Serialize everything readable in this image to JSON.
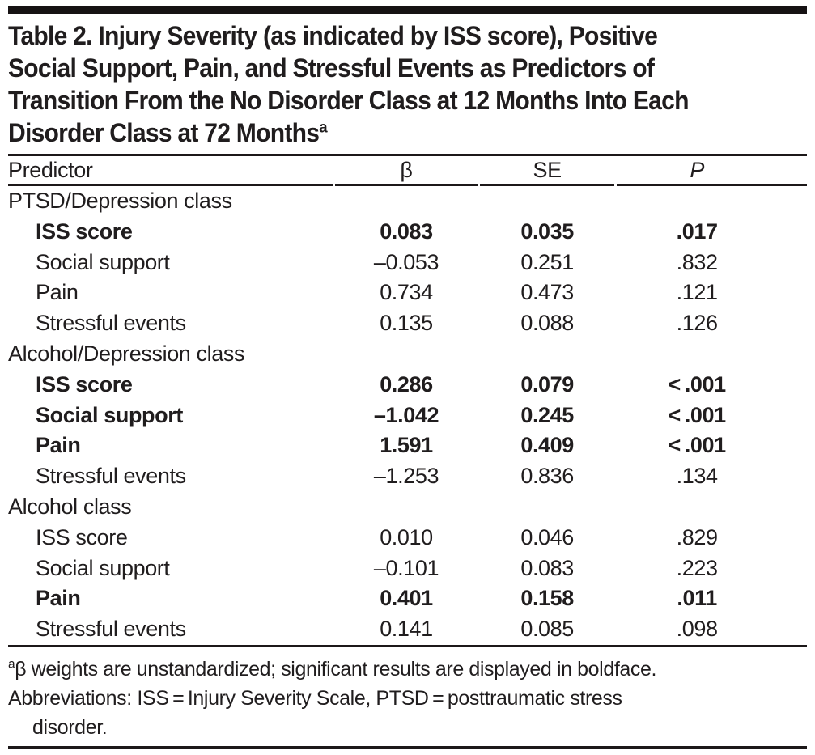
{
  "title": {
    "lines": [
      "Table 2. Injury Severity (as indicated by ISS score), Positive",
      "Social Support, Pain, and Stressful Events as Predictors of",
      "Transition From the No Disorder Class at 12 Months Into Each",
      "Disorder Class at 72 Months"
    ],
    "superscript": "a"
  },
  "table": {
    "columns": [
      "Predictor",
      "β",
      "SE",
      "P"
    ],
    "sections": [
      {
        "label": "PTSD/Depression class",
        "rows": [
          {
            "predictor": "ISS score",
            "beta": "0.083",
            "se": "0.035",
            "p": ".017",
            "bold": true
          },
          {
            "predictor": "Social support",
            "beta": "–0.053",
            "se": "0.251",
            "p": ".832",
            "bold": false
          },
          {
            "predictor": "Pain",
            "beta": "0.734",
            "se": "0.473",
            "p": ".121",
            "bold": false
          },
          {
            "predictor": "Stressful events",
            "beta": "0.135",
            "se": "0.088",
            "p": ".126",
            "bold": false
          }
        ]
      },
      {
        "label": "Alcohol/Depression class",
        "rows": [
          {
            "predictor": "ISS score",
            "beta": "0.286",
            "se": "0.079",
            "p": "< .001",
            "bold": true
          },
          {
            "predictor": "Social support",
            "beta": "–1.042",
            "se": "0.245",
            "p": "< .001",
            "bold": true
          },
          {
            "predictor": "Pain",
            "beta": "1.591",
            "se": "0.409",
            "p": "< .001",
            "bold": true
          },
          {
            "predictor": "Stressful events",
            "beta": "–1.253",
            "se": "0.836",
            "p": ".134",
            "bold": false
          }
        ]
      },
      {
        "label": "Alcohol class",
        "rows": [
          {
            "predictor": "ISS score",
            "beta": "0.010",
            "se": "0.046",
            "p": ".829",
            "bold": false
          },
          {
            "predictor": "Social support",
            "beta": "–0.101",
            "se": "0.083",
            "p": ".223",
            "bold": false
          },
          {
            "predictor": "Pain",
            "beta": "0.401",
            "se": "0.158",
            "p": ".011",
            "bold": true
          },
          {
            "predictor": "Stressful events",
            "beta": "0.141",
            "se": "0.085",
            "p": ".098",
            "bold": false
          }
        ]
      }
    ]
  },
  "footnotes": {
    "marker": "a",
    "note1": "β weights are unstandardized; significant results are displayed in boldface.",
    "note2_lines": [
      "Abbreviations: ISS = Injury Severity Scale, PTSD = posttraumatic stress",
      "disorder."
    ]
  },
  "colors": {
    "text": "#201d1e",
    "rule": "#1c1819",
    "background": "#ffffff"
  }
}
